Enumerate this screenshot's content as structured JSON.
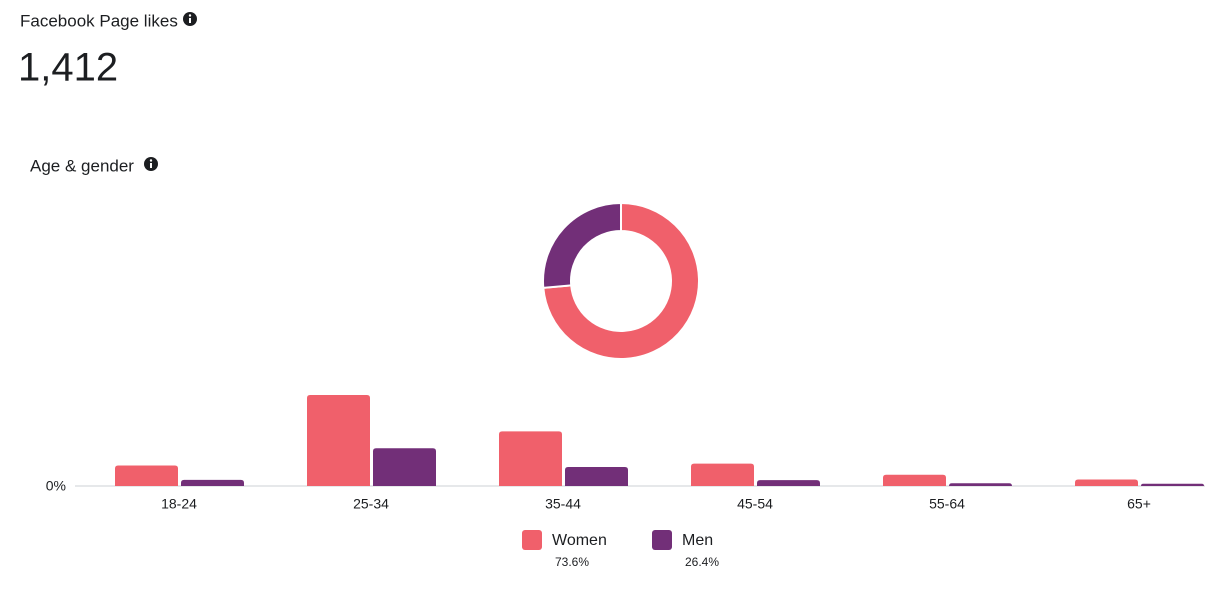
{
  "header": {
    "title": "Facebook Page likes",
    "value": "1,412"
  },
  "section_title": "Age & gender",
  "chart_data": [
    {
      "type": "pie",
      "values": [
        73.6,
        26.4
      ],
      "value_labels": [
        "73.6%",
        "26.4%"
      ],
      "colors": [
        "#f0606b",
        "#722f78"
      ]
    },
    {
      "type": "bar",
      "categories": [
        "18-24",
        "25-34",
        "35-44",
        "45-54",
        "55-64",
        "65+"
      ],
      "series": [
        {
          "name": "Women",
          "color": "#f0606b",
          "values": [
            7.3,
            32.5,
            19.5,
            8,
            4,
            2.3
          ]
        },
        {
          "name": "Men",
          "color": "#722f78",
          "values": [
            2.2,
            13.5,
            6.8,
            2.1,
            1.0,
            0.8
          ]
        }
      ],
      "ylim": [
        0,
        40
      ],
      "yticks": [
        {
          "value": 0,
          "label": "0%"
        }
      ]
    }
  ]
}
